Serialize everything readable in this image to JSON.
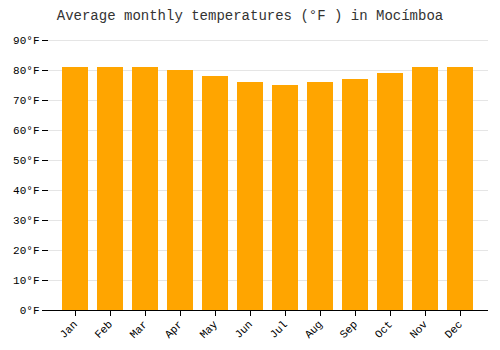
{
  "chart_data": {
    "type": "bar",
    "title": "Average monthly temperatures (°F ) in Mocímboa",
    "categories": [
      "Jan",
      "Feb",
      "Mar",
      "Apr",
      "May",
      "Jun",
      "Jul",
      "Aug",
      "Sep",
      "Oct",
      "Nov",
      "Dec"
    ],
    "values": [
      81,
      81,
      81,
      80,
      78,
      76,
      75,
      76,
      77,
      79,
      81,
      81
    ],
    "color": "#FFA500",
    "ylim": [
      0,
      90
    ],
    "yticks": [
      {
        "value": 0,
        "label": "0°F"
      },
      {
        "value": 10,
        "label": "10°F"
      },
      {
        "value": 20,
        "label": "20°F"
      },
      {
        "value": 30,
        "label": "30°F"
      },
      {
        "value": 40,
        "label": "40°F"
      },
      {
        "value": 50,
        "label": "50°F"
      },
      {
        "value": 60,
        "label": "60°F"
      },
      {
        "value": 70,
        "label": "70°F"
      },
      {
        "value": 80,
        "label": "80°F"
      },
      {
        "value": 90,
        "label": "90°F"
      }
    ],
    "grid": true
  }
}
